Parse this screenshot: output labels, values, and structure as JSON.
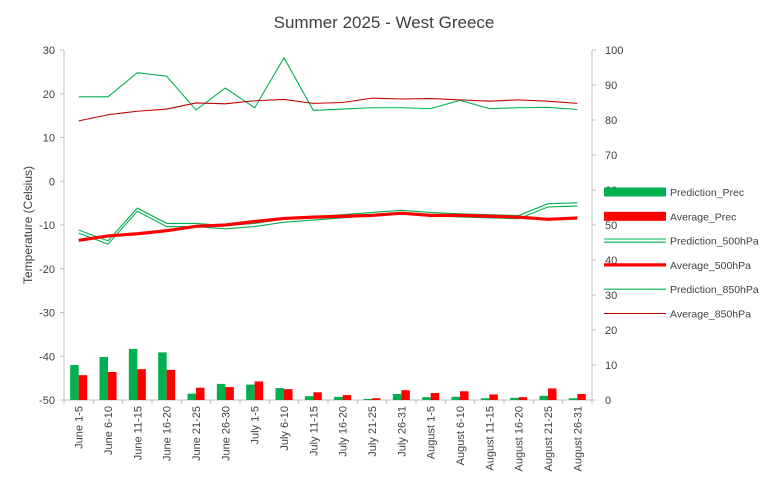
{
  "chart_data": {
    "type": "bar+line",
    "title": "Summer 2025 - West Greece",
    "ylabel": "Temperature (Celsius)",
    "y2label": "",
    "ylim": [
      -50,
      30
    ],
    "y2lim": [
      0,
      100
    ],
    "yticks": [
      -50,
      -40,
      -30,
      -20,
      -10,
      0,
      10,
      20,
      30
    ],
    "y2ticks": [
      0,
      10,
      20,
      30,
      40,
      50,
      60,
      70,
      80,
      90,
      100
    ],
    "grid": false,
    "legend_position": "right",
    "categories": [
      "June 1-5",
      "June 6-10",
      "June 11-15",
      "June 16-20",
      "June 21-25",
      "June 26-30",
      "July 1-5",
      "July 6-10",
      "July 11-15",
      "July 16-20",
      "July 21-25",
      "July 26-31",
      "August 1-5",
      "August 6-10",
      "August 11-15",
      "August 16-20",
      "August 21-25",
      "August 26-31"
    ],
    "series": [
      {
        "name": "Prediction_Prec",
        "kind": "bar",
        "axis": "right",
        "color": "#00b050",
        "values": [
          10,
          12.3,
          14.6,
          13.6,
          1.8,
          4.6,
          4.4,
          3.4,
          1.1,
          0.9,
          0.3,
          1.7,
          0.8,
          0.9,
          0.5,
          0.6,
          1.2,
          0.5
        ]
      },
      {
        "name": "Average_Prec",
        "kind": "bar",
        "axis": "right",
        "color": "#ff0000",
        "values": [
          7.1,
          8,
          8.8,
          8.6,
          3.5,
          3.7,
          5.3,
          3.1,
          2.2,
          1.4,
          0.5,
          2.8,
          2,
          2.5,
          1.6,
          0.8,
          3.3,
          1.7
        ]
      },
      {
        "name": "Prediction_500hPa",
        "kind": "line-double",
        "axis": "left",
        "color": "#00b050",
        "values": [
          -11.5,
          -14,
          -6.5,
          -10,
          -10,
          -10.5,
          -10,
          -9,
          -8.5,
          -8,
          -7.5,
          -7,
          -7.5,
          -7.8,
          -8,
          -8.2,
          -5.5,
          -5.3
        ]
      },
      {
        "name": "Average_500hPa",
        "kind": "line-thick",
        "axis": "left",
        "color": "#ff0000",
        "values": [
          -13.5,
          -12.5,
          -12,
          -11.3,
          -10.3,
          -10,
          -9.2,
          -8.5,
          -8.2,
          -8,
          -7.8,
          -7.3,
          -7.8,
          -7.8,
          -8,
          -8.2,
          -8.7,
          -8.4
        ]
      },
      {
        "name": "Prediction_850hPa",
        "kind": "line",
        "axis": "left",
        "color": "#00b050",
        "values": [
          19.3,
          19.3,
          24.8,
          24,
          16.3,
          21.3,
          16.8,
          28.2,
          16.2,
          16.5,
          16.8,
          16.8,
          16.6,
          18.5,
          16.6,
          16.8,
          16.9,
          16.4
        ]
      },
      {
        "name": "Average_850hPa",
        "kind": "line",
        "axis": "left",
        "color": "#c00000",
        "values": [
          13.8,
          15.2,
          16,
          16.5,
          17.9,
          17.7,
          18.4,
          18.7,
          17.8,
          18,
          19,
          18.8,
          18.9,
          18.6,
          18.3,
          18.6,
          18.3,
          17.8
        ]
      }
    ]
  }
}
